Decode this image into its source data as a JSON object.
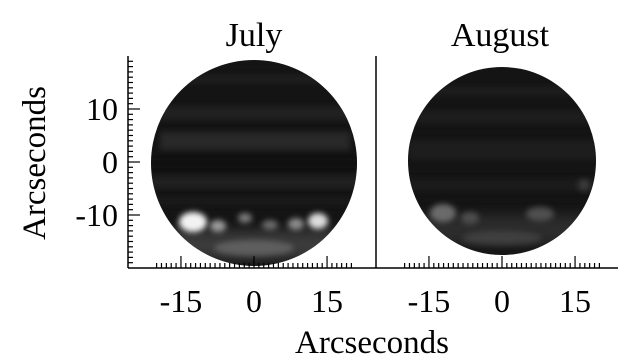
{
  "chart_data": {
    "type": "heatmap",
    "panels": [
      {
        "title": "July"
      },
      {
        "title": "August"
      }
    ],
    "xlabel": "Arcseconds",
    "ylabel": "Arcseconds",
    "x_ticks": [
      -15,
      0,
      15
    ],
    "y_ticks": [
      10,
      0,
      -10
    ],
    "xlim": [
      -21,
      21
    ],
    "ylim": [
      -19,
      19
    ],
    "colors": {
      "background": "#ffffff",
      "disk": "#151515",
      "bright_spot": "#f2f2f2"
    }
  }
}
